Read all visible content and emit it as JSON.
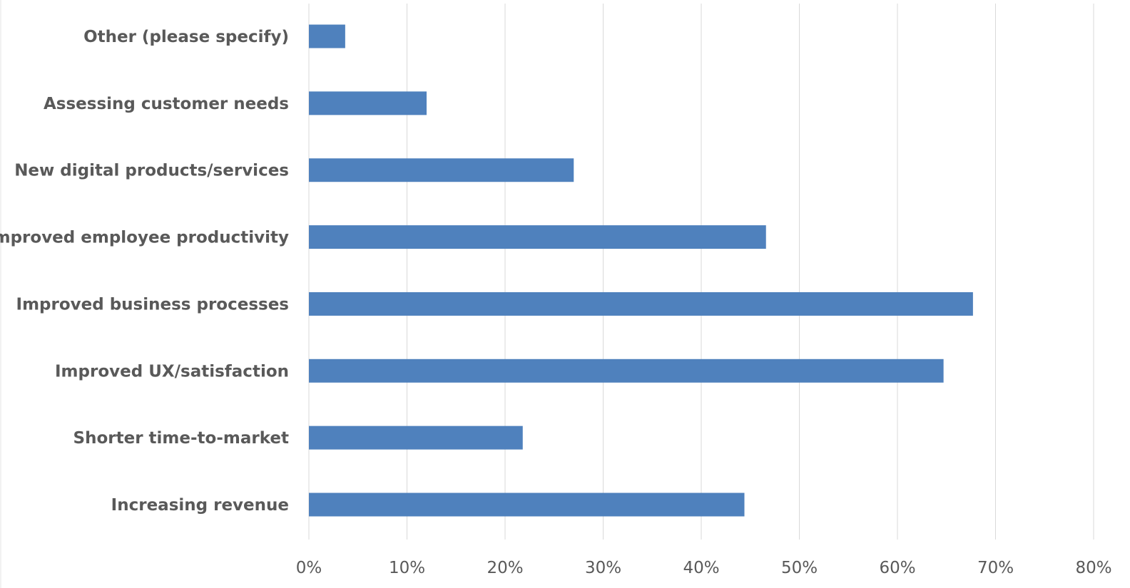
{
  "chart_data": {
    "type": "bar",
    "orientation": "horizontal",
    "categories": [
      "Other (please specify)",
      "Assessing customer needs",
      "New digital products/services",
      "Improved employee productivity",
      "Improved business processes",
      "Improved UX/satisfaction",
      "Shorter time-to-market",
      "Increasing revenue"
    ],
    "values": [
      3.7,
      12.0,
      27.0,
      46.6,
      67.7,
      64.7,
      21.8,
      44.4
    ],
    "value_unit": "%",
    "xlim": [
      0,
      80
    ],
    "xticks": [
      "0%",
      "10%",
      "20%",
      "30%",
      "40%",
      "50%",
      "60%",
      "70%",
      "80%"
    ],
    "grid": true,
    "legend": "none",
    "bar_color": "#4f81bd"
  }
}
